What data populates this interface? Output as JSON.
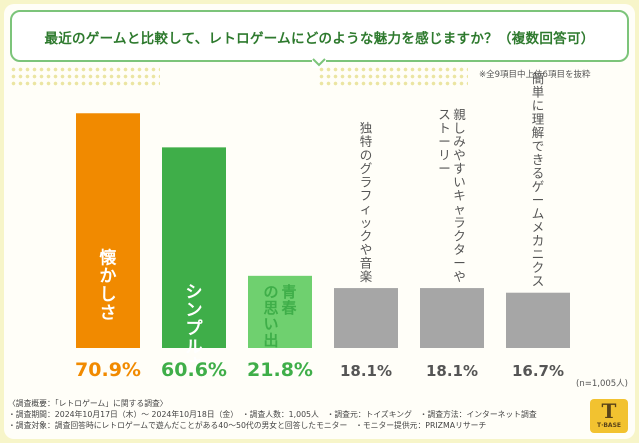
{
  "title": "最近のゲームと比較して、レトロゲームにどのような魅力を感じますか？（複数回答可）",
  "note": "※全9項目中上位6項目を抜粋",
  "sample_size": "(n=1,005人)",
  "footer": {
    "line1": "〈調査概要：「レトロゲーム」に関する調査〉",
    "line2": "・調査期間：2024年10月17日（木）～ 2024年10月18日（金）　・調査人数：1,005人　・調査元：トイズキング　・調査方法：インターネット調査",
    "line3": "・調査対象：調査回答時にレトロゲームで遊んだことがある40～50代の男女と回答したモニター　・モニター提供元：PRIZMAリサーチ"
  },
  "logo": {
    "mark": "T",
    "text": "T·BASE"
  },
  "colors": {
    "orange": "#f18a00",
    "green": "#3fae49",
    "light_green": "#6fd06f",
    "gray": "#a6a6a6",
    "title_green": "#2e7a2e"
  },
  "chart_data": {
    "type": "bar",
    "categories": [
      "懐かしさ",
      "シンプルさ",
      "青春の思い出",
      "独特のグラフィックや音楽",
      "親しみやすいキャラクターやストーリー",
      "簡単に理解できるゲームメカニクス"
    ],
    "category_lines": [
      [
        "懐かしさ"
      ],
      [
        "シンプルさ"
      ],
      [
        "青春",
        "の思い出"
      ],
      [
        "独特のグラフィックや音楽"
      ],
      [
        "親しみやすいキャラクターや",
        "ストーリー"
      ],
      [
        "簡単に理解できるゲームメカニクス"
      ]
    ],
    "values": [
      70.9,
      60.6,
      21.8,
      18.1,
      18.1,
      16.7
    ],
    "value_labels": [
      "70.9%",
      "60.6%",
      "21.8%",
      "18.1%",
      "18.1%",
      "16.7%"
    ],
    "unit": "%",
    "ylim": [
      0,
      74
    ],
    "bar_colors": [
      "#f18a00",
      "#3fae49",
      "#6fd06f",
      "#a6a6a6",
      "#a6a6a6",
      "#a6a6a6"
    ],
    "label_colors": [
      "#f18a00",
      "#3fae49",
      "#3fae49",
      "#555555",
      "#555555",
      "#555555"
    ],
    "label_inside": [
      true,
      true,
      true,
      false,
      false,
      false
    ]
  }
}
